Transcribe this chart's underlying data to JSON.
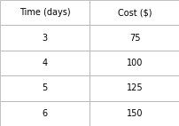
{
  "col_headers": [
    "Time (days)",
    "Cost ($)"
  ],
  "rows": [
    [
      "3",
      "75"
    ],
    [
      "4",
      "100"
    ],
    [
      "5",
      "125"
    ],
    [
      "6",
      "150"
    ]
  ],
  "background_color": "#ffffff",
  "border_color": "#aaaaaa",
  "font_size": 7,
  "header_font_size": 7,
  "fig_width": 2.03,
  "fig_height": 1.42,
  "dpi": 100
}
